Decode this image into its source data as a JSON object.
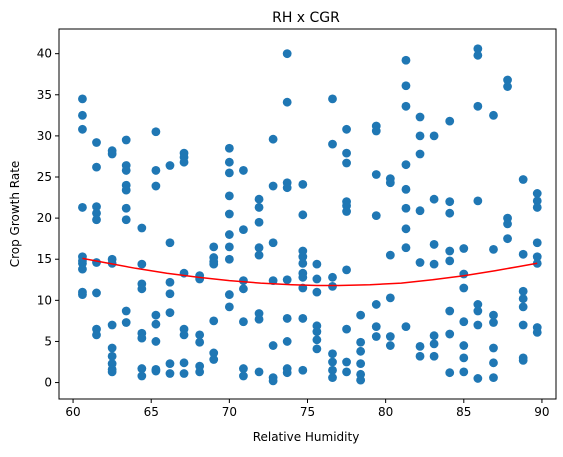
{
  "chart_data": {
    "type": "scatter",
    "title": "RH x CGR",
    "xlabel": "Relative Humidity",
    "ylabel": "Crop Growth Rate",
    "xlim": [
      59.1,
      90.9
    ],
    "ylim": [
      -2,
      43
    ],
    "xticks": [
      "60",
      "65",
      "70",
      "75",
      "80",
      "85",
      "90"
    ],
    "yticks": [
      "0",
      "5",
      "10",
      "15",
      "20",
      "25",
      "30",
      "35",
      "40"
    ],
    "grid": false,
    "colors": {
      "points": "#1f77b4",
      "fit": "#ff0000"
    },
    "series": [
      {
        "kind": "points",
        "x": [
          60.6,
          60.6,
          60.6,
          60.6,
          60.6,
          60.6,
          60.6,
          60.6,
          60.6,
          60.6,
          61.5,
          61.5,
          61.5,
          61.5,
          61.5,
          61.5,
          61.5,
          61.5,
          61.5,
          62.5,
          62.5,
          62.5,
          62.5,
          62.5,
          62.5,
          62.5,
          62.5,
          62.5,
          62.5,
          63.4,
          63.4,
          63.4,
          63.4,
          63.4,
          63.4,
          63.4,
          63.4,
          63.4,
          64.4,
          64.4,
          64.4,
          64.4,
          64.4,
          64.4,
          64.4,
          64.4,
          65.3,
          65.3,
          65.3,
          65.3,
          65.3,
          65.3,
          65.3,
          65.3,
          66.2,
          66.2,
          66.2,
          66.2,
          66.2,
          66.2,
          66.2,
          67.1,
          67.1,
          67.1,
          67.1,
          67.1,
          67.1,
          67.1,
          67.1,
          68.1,
          68.1,
          68.1,
          68.1,
          68.1,
          68.1,
          69.0,
          69.0,
          69.0,
          69.0,
          69.0,
          69.0,
          69.0,
          70.0,
          70.0,
          70.0,
          70.0,
          70.0,
          70.0,
          70.0,
          70.0,
          70.0,
          70.0,
          70.9,
          70.9,
          70.9,
          70.9,
          70.9,
          70.9,
          70.9,
          71.9,
          71.9,
          71.9,
          71.9,
          71.9,
          71.9,
          71.9,
          71.9,
          72.8,
          72.8,
          72.8,
          72.8,
          72.8,
          72.8,
          72.8,
          73.7,
          73.7,
          73.7,
          73.7,
          73.7,
          73.7,
          73.7,
          73.7,
          73.7,
          74.7,
          74.7,
          74.7,
          74.7,
          74.7,
          74.7,
          74.7,
          74.7,
          74.7,
          74.7,
          75.6,
          75.6,
          75.6,
          75.6,
          75.6,
          75.6,
          75.6,
          76.6,
          76.6,
          76.6,
          76.6,
          76.6,
          76.6,
          76.6,
          76.6,
          77.5,
          77.5,
          77.5,
          77.5,
          77.5,
          77.5,
          77.5,
          77.5,
          77.5,
          77.5,
          78.4,
          78.4,
          78.4,
          78.4,
          78.4,
          78.4,
          79.4,
          79.4,
          79.4,
          79.4,
          79.4,
          79.4,
          79.4,
          80.3,
          80.3,
          80.3,
          80.3,
          80.3,
          80.3,
          81.3,
          81.3,
          81.3,
          81.3,
          81.3,
          81.3,
          81.3,
          81.3,
          81.3,
          82.2,
          82.2,
          82.2,
          82.2,
          82.2,
          82.2,
          82.2,
          83.1,
          83.1,
          83.1,
          83.1,
          83.1,
          83.1,
          83.1,
          84.1,
          84.1,
          84.1,
          84.1,
          84.1,
          84.1,
          84.1,
          84.1,
          85.0,
          85.0,
          85.0,
          85.0,
          85.0,
          85.0,
          85.0,
          85.9,
          85.9,
          85.9,
          85.9,
          85.9,
          85.9,
          85.9,
          85.9,
          86.9,
          86.9,
          86.9,
          86.9,
          86.9,
          86.9,
          86.9,
          87.8,
          87.8,
          87.8,
          87.8,
          87.8,
          88.8,
          88.8,
          88.8,
          88.8,
          88.8,
          88.8,
          88.8,
          88.8,
          89.7,
          89.7,
          89.7,
          89.7,
          89.7,
          89.7,
          89.7,
          89.7
        ],
        "y": [
          34.5,
          32.5,
          30.8,
          21.3,
          15.3,
          14.5,
          13.8,
          11.0,
          10.7,
          14.8,
          29.2,
          26.2,
          21.4,
          20.6,
          19.8,
          14.6,
          10.9,
          6.5,
          5.8,
          28.2,
          27.8,
          15.0,
          14.5,
          7.0,
          4.2,
          3.2,
          2.3,
          1.6,
          1.3,
          29.5,
          26.4,
          25.8,
          24.0,
          23.4,
          21.2,
          19.8,
          8.7,
          7.3,
          18.8,
          14.4,
          12.0,
          11.4,
          6.0,
          5.4,
          1.7,
          0.8,
          30.5,
          25.8,
          23.9,
          8.2,
          7.1,
          5.0,
          1.6,
          1.4,
          26.4,
          17.0,
          12.2,
          10.8,
          8.5,
          2.3,
          1.1,
          27.9,
          27.4,
          26.8,
          13.3,
          6.5,
          5.8,
          2.4,
          1.1,
          13.0,
          12.6,
          2.0,
          1.3,
          5.8,
          4.9,
          16.5,
          15.2,
          14.7,
          14.4,
          7.5,
          3.6,
          2.8,
          28.5,
          26.8,
          25.5,
          22.7,
          20.5,
          18.0,
          16.5,
          15.0,
          10.7,
          9.2,
          25.8,
          18.6,
          12.4,
          11.4,
          7.4,
          1.7,
          0.8,
          22.3,
          21.3,
          19.5,
          16.4,
          15.5,
          8.4,
          7.7,
          1.3,
          29.6,
          23.9,
          17.0,
          12.4,
          4.5,
          0.6,
          0.2,
          40.0,
          34.1,
          24.3,
          23.7,
          12.5,
          7.8,
          5.0,
          1.7,
          1.2,
          24.1,
          20.4,
          16.0,
          15.3,
          14.5,
          13.3,
          12.8,
          11.5,
          7.8,
          1.5,
          14.4,
          12.6,
          11.0,
          6.9,
          6.2,
          5.2,
          4.1,
          34.5,
          29.0,
          12.8,
          11.7,
          3.5,
          2.5,
          1.5,
          0.6,
          30.8,
          27.9,
          26.7,
          22.0,
          21.5,
          20.8,
          13.7,
          6.5,
          2.5,
          1.3,
          8.2,
          4.9,
          3.8,
          2.3,
          1.0,
          0.3,
          31.2,
          30.6,
          25.3,
          20.3,
          9.5,
          6.8,
          5.6,
          24.8,
          24.3,
          15.5,
          10.3,
          5.6,
          4.5,
          39.2,
          36.1,
          33.6,
          26.5,
          23.5,
          21.2,
          18.7,
          16.4,
          6.8,
          32.3,
          30.0,
          27.8,
          20.9,
          14.6,
          4.4,
          3.2,
          30.0,
          22.3,
          16.8,
          14.4,
          5.7,
          4.7,
          3.2,
          31.8,
          22.0,
          20.6,
          16.0,
          14.8,
          8.7,
          5.9,
          1.2,
          16.3,
          13.2,
          11.5,
          7.4,
          4.5,
          3.0,
          1.3,
          40.6,
          39.8,
          33.6,
          22.1,
          9.5,
          8.7,
          7.0,
          0.5,
          32.5,
          16.2,
          8.2,
          7.3,
          4.2,
          2.4,
          0.6,
          36.8,
          36.0,
          20.0,
          19.3,
          17.5,
          24.7,
          15.6,
          11.1,
          10.2,
          9.2,
          7.0,
          3.0,
          2.7,
          23.0,
          22.1,
          21.3,
          17.0,
          15.3,
          14.5,
          6.7,
          6.1
        ]
      },
      {
        "kind": "fit-line",
        "x": [
          60.6,
          62,
          64,
          66,
          68,
          70,
          72,
          74,
          75.6,
          77,
          79,
          81,
          83,
          85,
          87,
          88.5,
          89.7
        ],
        "y": [
          15.1,
          14.6,
          13.9,
          13.3,
          12.8,
          12.4,
          12.1,
          11.9,
          11.8,
          11.8,
          11.9,
          12.1,
          12.5,
          13.0,
          13.6,
          14.1,
          14.5
        ]
      }
    ]
  }
}
